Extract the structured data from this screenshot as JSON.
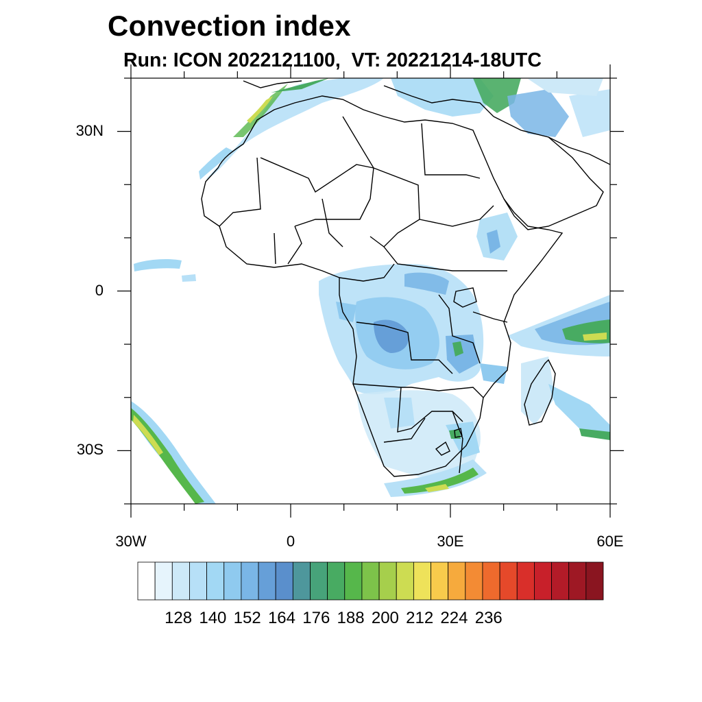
{
  "title": "Convection index",
  "subtitle": "Run: ICON 2022121100,  VT: 20221214-18UTC",
  "map": {
    "extent": {
      "lon_min": -30,
      "lon_max": 60,
      "lat_min": -40,
      "lat_max": 40
    },
    "lat_ticks": [
      {
        "value": 30,
        "label": "30N"
      },
      {
        "value": 0,
        "label": "0"
      },
      {
        "value": -30,
        "label": "30S"
      }
    ],
    "lon_ticks": [
      {
        "value": -30,
        "label": "30W"
      },
      {
        "value": 0,
        "label": "0"
      },
      {
        "value": 30,
        "label": "30E"
      },
      {
        "value": 60,
        "label": "60E"
      }
    ]
  },
  "colorbar": {
    "colors": [
      "#ffffff",
      "#e6f4fc",
      "#cde9f8",
      "#b7e0f7",
      "#a2d8f4",
      "#8fcaef",
      "#7ab6e6",
      "#669fd8",
      "#5a8fcc",
      "#4e979c",
      "#47a37a",
      "#48ab62",
      "#56b74b",
      "#7dc34a",
      "#a6cf4c",
      "#cddc52",
      "#eee25a",
      "#f8cb4c",
      "#f6aa3d",
      "#f38b34",
      "#ee6a2d",
      "#e5492a",
      "#d92f2a",
      "#c8202a",
      "#b31b28",
      "#9e1824",
      "#8a1520"
    ],
    "labels": [
      "128",
      "140",
      "152",
      "164",
      "176",
      "188",
      "200",
      "212",
      "224",
      "236"
    ]
  }
}
